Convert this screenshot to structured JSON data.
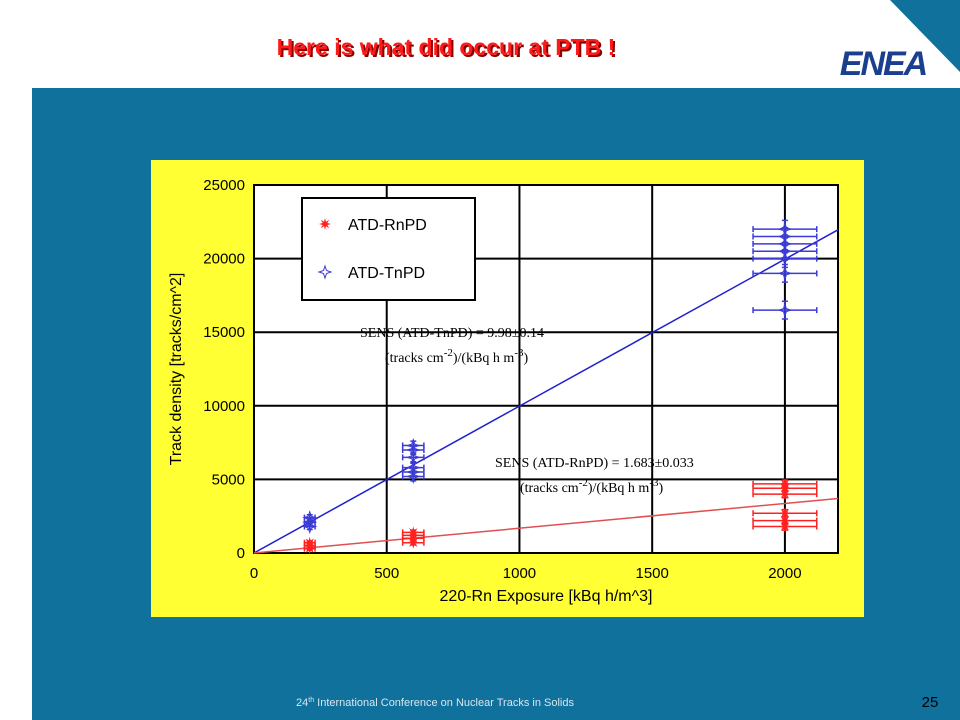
{
  "slide": {
    "title": "Here is what did occur at PTB !",
    "logo": "ENEA",
    "footer": [
      "24",
      "th",
      " International Conference on Nuclear Tracks in Solids"
    ],
    "page": "25"
  },
  "chart_data": {
    "type": "scatter",
    "xlabel": "220-Rn Exposure [kBq h/m^3]",
    "ylabel": "Track density [tracks/cm^2]",
    "xlim": [
      0,
      2200
    ],
    "ylim": [
      0,
      25000
    ],
    "xticks": [
      0,
      500,
      1000,
      1500,
      2000
    ],
    "yticks": [
      0,
      5000,
      10000,
      15000,
      20000,
      25000
    ],
    "grid": true,
    "legend": "upper left",
    "series": [
      {
        "name": "ATD-RnPD",
        "color": "#ff2020",
        "marker": "star",
        "x": [
          210,
          210,
          210,
          600,
          600,
          600,
          600,
          2000,
          2000,
          2000,
          2000,
          2000,
          2000
        ],
        "values": [
          300,
          500,
          700,
          700,
          1000,
          1200,
          1400,
          1800,
          2200,
          2700,
          4000,
          4400,
          4700
        ],
        "xerr": [
          20,
          20,
          20,
          40,
          40,
          40,
          40,
          120,
          120,
          120,
          120,
          120,
          120
        ],
        "yerr": [
          100,
          100,
          100,
          150,
          150,
          150,
          150,
          250,
          250,
          250,
          250,
          250,
          250
        ]
      },
      {
        "name": "ATD-TnPD",
        "color": "#3b3bd6",
        "marker": "diamond",
        "x": [
          210,
          210,
          210,
          600,
          600,
          600,
          600,
          600,
          600,
          2000,
          2000,
          2000,
          2000,
          2000,
          2000,
          2000
        ],
        "values": [
          1800,
          2100,
          2400,
          5200,
          5500,
          5800,
          6500,
          7000,
          7300,
          16500,
          19000,
          20000,
          20500,
          21000,
          21500,
          22000
        ],
        "xerr": [
          20,
          20,
          20,
          40,
          40,
          40,
          40,
          40,
          40,
          120,
          120,
          120,
          120,
          120,
          120,
          120
        ],
        "yerr": [
          200,
          200,
          200,
          300,
          300,
          300,
          300,
          300,
          300,
          600,
          600,
          600,
          600,
          600,
          600,
          600
        ]
      }
    ],
    "fits": [
      {
        "color": "#2020d0",
        "x": [
          0,
          2200
        ],
        "values": [
          0,
          21956
        ]
      },
      {
        "color": "#e05050",
        "x": [
          0,
          2200
        ],
        "values": [
          0,
          3703
        ]
      }
    ],
    "annotations": [
      {
        "lines": [
          [
            "SENS (ATD-TnPD) = 9.98±0.14"
          ],
          [
            "(tracks cm",
            "-2",
            ")/(kBq h m",
            "-3",
            ")"
          ]
        ]
      },
      {
        "lines": [
          [
            "SENS (ATD-RnPD) = 1.683±0.033"
          ],
          [
            "(tracks cm",
            "-2",
            ")/(kBq h m",
            "-3",
            ")"
          ]
        ]
      }
    ]
  }
}
